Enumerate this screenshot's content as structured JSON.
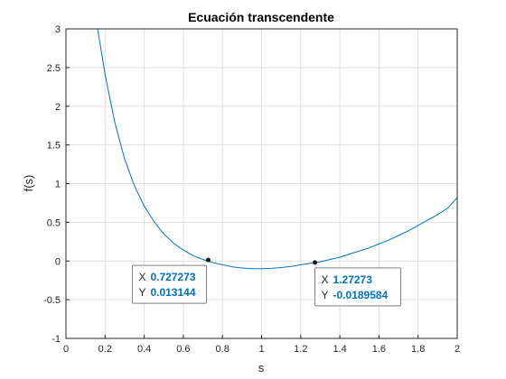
{
  "chart_data": {
    "type": "line",
    "title": "Ecuación transcendente",
    "xlabel": "s",
    "ylabel": "f(s)",
    "xlim": [
      0,
      2
    ],
    "ylim": [
      -1,
      3
    ],
    "grid": true,
    "x_ticks": [
      "0",
      "0.2",
      "0.4",
      "0.6",
      "0.8",
      "1",
      "1.2",
      "1.4",
      "1.6",
      "1.8",
      "2"
    ],
    "y_ticks": [
      "-1",
      "-0.5",
      "0",
      "0.5",
      "1",
      "1.5",
      "2",
      "2.5",
      "3"
    ],
    "series": [
      {
        "color": "#0072bd",
        "x": [
          0.16,
          0.2,
          0.25,
          0.3,
          0.35,
          0.4,
          0.45,
          0.5,
          0.55,
          0.6,
          0.65,
          0.7,
          0.75,
          0.8,
          0.85,
          0.9,
          0.95,
          1.0,
          1.05,
          1.1,
          1.15,
          1.2,
          1.25,
          1.3,
          1.35,
          1.4,
          1.45,
          1.5,
          1.55,
          1.6,
          1.65,
          1.7,
          1.75,
          1.8,
          1.85,
          1.9,
          1.95,
          2.0
        ],
        "y": [
          3.03,
          2.41,
          1.79,
          1.32,
          0.97,
          0.71,
          0.51,
          0.35,
          0.23,
          0.14,
          0.07,
          0.02,
          -0.02,
          -0.05,
          -0.075,
          -0.09,
          -0.1,
          -0.1,
          -0.095,
          -0.085,
          -0.07,
          -0.05,
          -0.03,
          -0.01,
          0.02,
          0.05,
          0.09,
          0.13,
          0.17,
          0.22,
          0.27,
          0.33,
          0.39,
          0.46,
          0.53,
          0.6,
          0.68,
          0.82
        ]
      }
    ],
    "datatips": [
      {
        "x_key": "X",
        "x_value": "0.727273",
        "y_key": "Y",
        "y_value": "0.013144",
        "px": 0.727273,
        "py": 0.013144
      },
      {
        "x_key": "X",
        "x_value": "1.27273",
        "y_key": "Y",
        "y_value": "-0.0189584",
        "px": 1.27273,
        "py": -0.0189584
      }
    ],
    "colors": {
      "line": "#0072bd",
      "tip_value": "#0072bd",
      "grid": "#dfdfdf",
      "axes": "#262626"
    }
  }
}
